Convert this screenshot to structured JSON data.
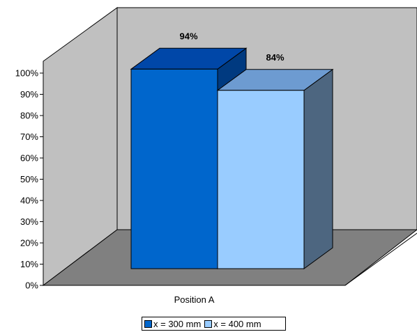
{
  "chart_data": {
    "type": "bar",
    "categories": [
      "Position A"
    ],
    "series": [
      {
        "name": "x = 300 mm",
        "values": [
          94
        ],
        "label": "94%",
        "color": "#0066cc",
        "top_color": "#0047a8",
        "side_color": "#003a80"
      },
      {
        "name": "x = 400 mm",
        "values": [
          84
        ],
        "label": "84%",
        "color": "#99ccff",
        "top_color": "#6d9bd1",
        "side_color": "#4d6680"
      }
    ],
    "y_ticks": [
      "0%",
      "10%",
      "20%",
      "30%",
      "40%",
      "50%",
      "60%",
      "70%",
      "80%",
      "90%",
      "100%"
    ],
    "ylim": [
      0,
      100
    ],
    "grid": false,
    "legend_position": "bottom",
    "style": "3d-column",
    "wall_color": "#c0c0c0",
    "floor_color": "#808080",
    "title": "",
    "xlabel": "",
    "ylabel": ""
  }
}
